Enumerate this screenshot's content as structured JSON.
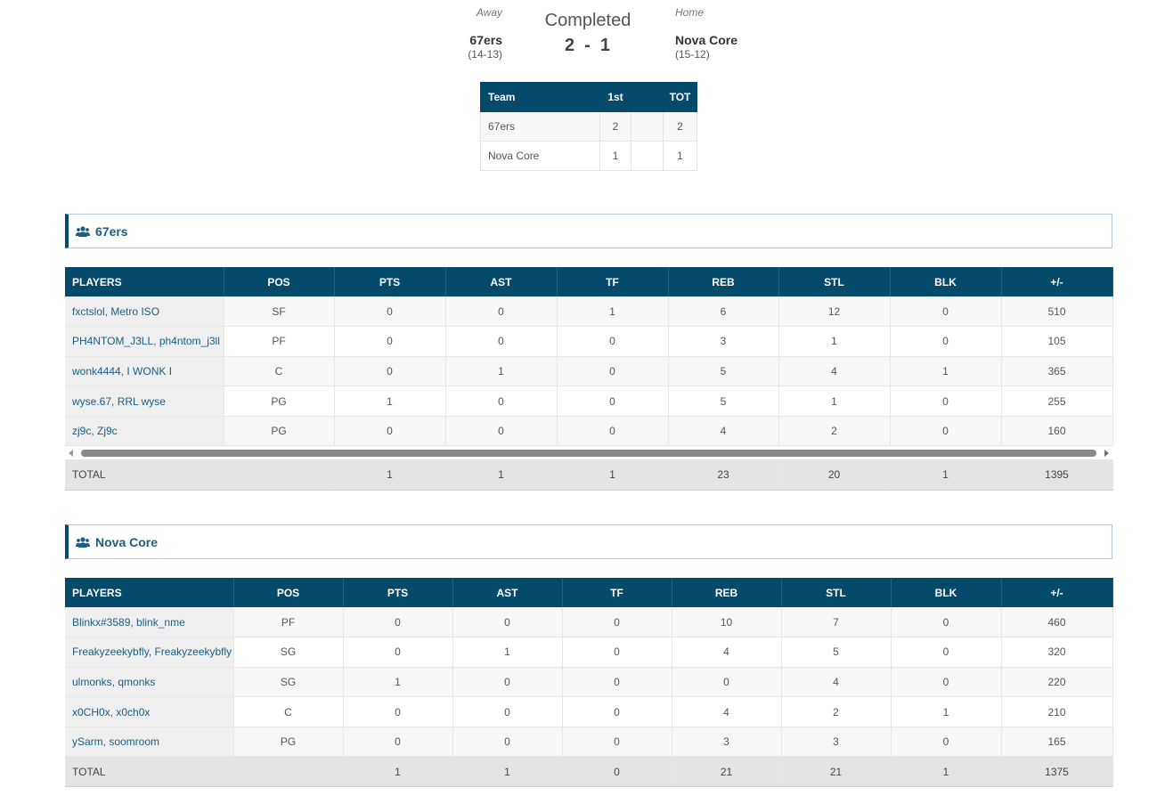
{
  "header": {
    "away_label": "Away",
    "home_label": "Home",
    "status": "Completed",
    "away": {
      "name": "67ers",
      "record": "(14-13)",
      "score": "2"
    },
    "home": {
      "name": "Nova Core",
      "record": "(15-12)",
      "score": "1"
    },
    "score_separator": "-"
  },
  "linescore": {
    "headers": {
      "team": "Team",
      "q1": "1st",
      "gap": "",
      "tot": "TOT"
    },
    "rows": [
      {
        "team": "67ers",
        "q1": "2",
        "gap": "",
        "tot": "2"
      },
      {
        "team": "Nova Core",
        "q1": "1",
        "gap": "",
        "tot": "1"
      }
    ]
  },
  "columns": [
    "PLAYERS",
    "POS",
    "PTS",
    "AST",
    "TF",
    "REB",
    "STL",
    "BLK",
    "+/-"
  ],
  "teams": [
    {
      "title": "67ers",
      "icon": "users-icon",
      "players": [
        {
          "name": "fxctslol, Metro ISO",
          "pos": "SF",
          "pts": "0",
          "ast": "0",
          "tf": "1",
          "reb": "6",
          "stl": "12",
          "blk": "0",
          "pm": "510"
        },
        {
          "name": "PH4NTOM_J3LL, ph4ntom_j3ll",
          "pos": "PF",
          "pts": "0",
          "ast": "0",
          "tf": "0",
          "reb": "3",
          "stl": "1",
          "blk": "0",
          "pm": "105"
        },
        {
          "name": "wonk4444, I WONK I",
          "pos": "C",
          "pts": "0",
          "ast": "1",
          "tf": "0",
          "reb": "5",
          "stl": "4",
          "blk": "1",
          "pm": "365"
        },
        {
          "name": "wyse.67, RRL wyse",
          "pos": "PG",
          "pts": "1",
          "ast": "0",
          "tf": "0",
          "reb": "5",
          "stl": "1",
          "blk": "0",
          "pm": "255"
        },
        {
          "name": "zj9c, Zj9c",
          "pos": "PG",
          "pts": "0",
          "ast": "0",
          "tf": "0",
          "reb": "4",
          "stl": "2",
          "blk": "0",
          "pm": "160"
        }
      ],
      "total": {
        "label": "TOTAL",
        "pos": "",
        "pts": "1",
        "ast": "1",
        "tf": "1",
        "reb": "23",
        "stl": "20",
        "blk": "1",
        "pm": "1395"
      }
    },
    {
      "title": "Nova Core",
      "icon": "users-icon",
      "players": [
        {
          "name": "Blinkx#3589, blink_nme",
          "pos": "PF",
          "pts": "0",
          "ast": "0",
          "tf": "0",
          "reb": "10",
          "stl": "7",
          "blk": "0",
          "pm": "460"
        },
        {
          "name": "Freakyzeekybfly, Freakyzeekybfly",
          "pos": "SG",
          "pts": "0",
          "ast": "1",
          "tf": "0",
          "reb": "4",
          "stl": "5",
          "blk": "0",
          "pm": "320"
        },
        {
          "name": "ulmonks, qmonks",
          "pos": "SG",
          "pts": "1",
          "ast": "0",
          "tf": "0",
          "reb": "0",
          "stl": "4",
          "blk": "0",
          "pm": "220"
        },
        {
          "name": "x0CH0x, x0ch0x",
          "pos": "C",
          "pts": "0",
          "ast": "0",
          "tf": "0",
          "reb": "4",
          "stl": "2",
          "blk": "1",
          "pm": "210"
        },
        {
          "name": "ySarm, soomroom",
          "pos": "PG",
          "pts": "0",
          "ast": "0",
          "tf": "0",
          "reb": "3",
          "stl": "3",
          "blk": "0",
          "pm": "165"
        }
      ],
      "total": {
        "label": "TOTAL",
        "pos": "",
        "pts": "1",
        "ast": "1",
        "tf": "0",
        "reb": "21",
        "stl": "21",
        "blk": "1",
        "pm": "1375"
      }
    }
  ],
  "colors": {
    "header_bg": "#054a6a",
    "link": "#1a5e82",
    "total_bg": "#e4e4e4"
  }
}
